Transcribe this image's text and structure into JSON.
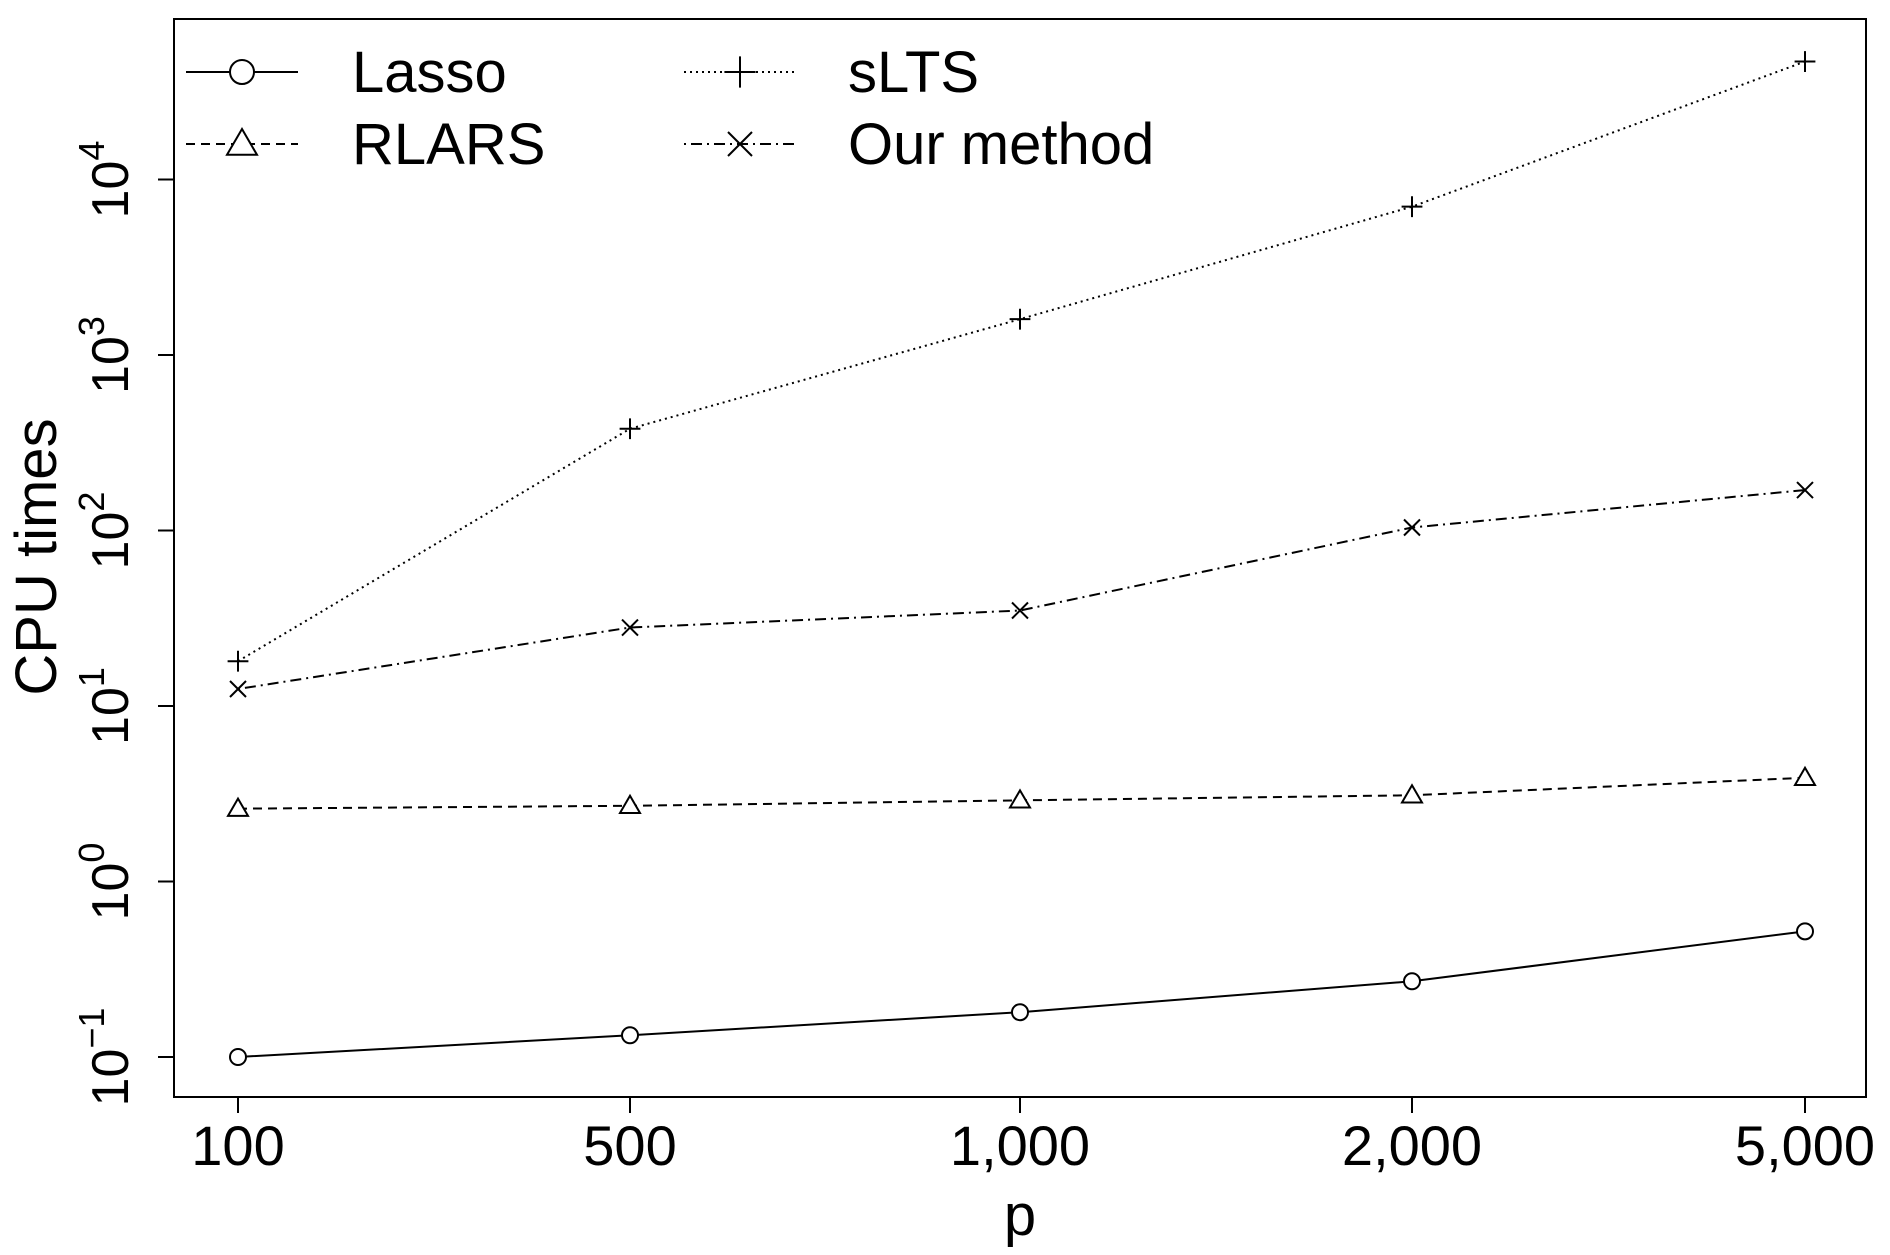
{
  "chart_data": {
    "type": "line",
    "xlabel": "p",
    "ylabel": "CPU times",
    "y_scale": "log10",
    "x_scale": "categorical",
    "categories": [
      "100",
      "500",
      "1,000",
      "2,000",
      "5,000"
    ],
    "yticks": [
      {
        "base": "10",
        "exp": "−1"
      },
      {
        "base": "10",
        "exp": "0"
      },
      {
        "base": "10",
        "exp": "1"
      },
      {
        "base": "10",
        "exp": "2"
      },
      {
        "base": "10",
        "exp": "3"
      },
      {
        "base": "10",
        "exp": "4"
      }
    ],
    "ylim": [
      0.1,
      50000
    ],
    "grid": false,
    "legend_position": "top-left",
    "series": [
      {
        "name": "Lasso",
        "values": [
          0.1,
          0.133,
          0.18,
          0.27,
          0.52
        ],
        "marker": "circle",
        "line": "solid"
      },
      {
        "name": "RLARS",
        "values": [
          2.6,
          2.7,
          2.9,
          3.1,
          3.9
        ],
        "marker": "triangle",
        "line": "dashed"
      },
      {
        "name": "sLTS",
        "values": [
          18,
          380,
          1600,
          7000,
          47000
        ],
        "marker": "plus",
        "line": "dotted"
      },
      {
        "name": "Our method",
        "values": [
          12.5,
          28,
          35,
          104,
          170
        ],
        "marker": "cross",
        "line": "dotdash"
      }
    ]
  }
}
